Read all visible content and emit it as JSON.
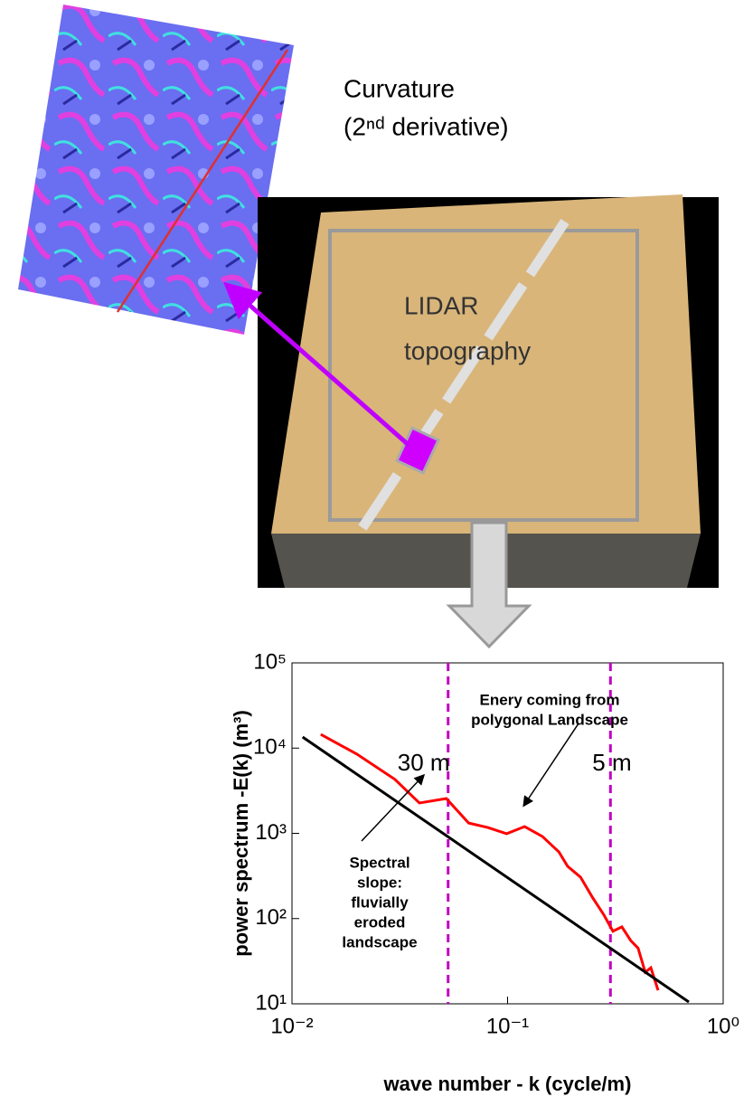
{
  "labels": {
    "curvature": "Curvature",
    "curvature_sub": "(2ⁿᵈ derivative)",
    "lidar": "LIDAR",
    "lidar_sub": "topography"
  },
  "chart_data": {
    "type": "line",
    "xscale": "log",
    "yscale": "log",
    "xlabel": "wave number - k (cycle/m)",
    "ylabel": "power spectrum -E(k) (m³)",
    "xlim": [
      0.01,
      1
    ],
    "ylim": [
      10,
      100000
    ],
    "xticks": [
      {
        "value": 0.01,
        "label": "10⁻²"
      },
      {
        "value": 0.1,
        "label": "10⁻¹"
      },
      {
        "value": 1,
        "label": "10⁰"
      }
    ],
    "yticks": [
      {
        "value": 10,
        "label": "10¹"
      },
      {
        "value": 100,
        "label": "10²"
      },
      {
        "value": 1000,
        "label": "10³"
      },
      {
        "value": 10000,
        "label": "10⁴"
      },
      {
        "value": 100000,
        "label": "10⁵"
      }
    ],
    "series": [
      {
        "color": "#ff0000",
        "x": [
          0.0136,
          0.02,
          0.03,
          0.039,
          0.052,
          0.066,
          0.081,
          0.099,
          0.12,
          0.145,
          0.173,
          0.19,
          0.218,
          0.247,
          0.28,
          0.308,
          0.339,
          0.373,
          0.403,
          0.435,
          0.462,
          0.499
        ],
        "values": [
          14500,
          8500,
          4300,
          2270,
          2560,
          1320,
          1170,
          990,
          1200,
          920,
          605,
          410,
          306,
          179,
          110,
          71,
          80,
          55,
          45,
          23.5,
          26.5,
          14.4
        ]
      },
      {
        "color": "#000000",
        "x": [
          0.0112,
          0.693
        ],
        "values": [
          13500,
          10.5
        ]
      }
    ],
    "vlines": [
      {
        "x": 0.053,
        "color": "#c000c0",
        "label": "30 m"
      },
      {
        "x": 0.3,
        "color": "#c000c0",
        "label": "5 m"
      }
    ],
    "annotations": [
      {
        "lines": [
          "Enery coming from",
          "polygonal Landscape"
        ]
      },
      {
        "lines": [
          "Spectral",
          "slope:",
          "fluvially",
          "eroded",
          "landscape"
        ]
      }
    ]
  }
}
